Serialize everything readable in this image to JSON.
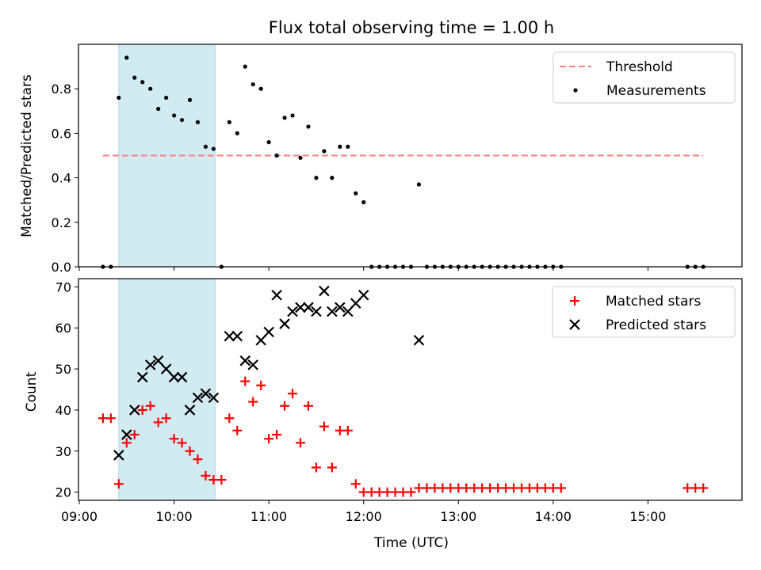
{
  "chart_data": [
    {
      "type": "scatter",
      "title": "Flux total observing time = 1.00 h",
      "xlabel": "",
      "ylabel": "Matched/Predicted stars",
      "xlim": [
        "09:00",
        "16:00"
      ],
      "ylim": [
        0,
        1.0
      ],
      "yticks": [
        0.0,
        0.2,
        0.4,
        0.6,
        0.8
      ],
      "xticks": [
        "09:00",
        "10:00",
        "11:00",
        "12:00",
        "13:00",
        "14:00",
        "15:00"
      ],
      "highlight_span": [
        "09:25",
        "10:26"
      ],
      "highlight_color": "#add8e6",
      "threshold": {
        "name": "Threshold",
        "y": 0.5,
        "x_range": [
          "09:15",
          "15:35"
        ],
        "color": "#ff7f7f"
      },
      "series": [
        {
          "name": "Measurements",
          "color": "#000000",
          "points": [
            [
              "09:15",
              0.0
            ],
            [
              "09:20",
              0.0
            ],
            [
              "09:25",
              0.76
            ],
            [
              "09:30",
              0.94
            ],
            [
              "09:35",
              0.85
            ],
            [
              "09:40",
              0.83
            ],
            [
              "09:45",
              0.8
            ],
            [
              "09:50",
              0.71
            ],
            [
              "09:55",
              0.76
            ],
            [
              "10:00",
              0.68
            ],
            [
              "10:05",
              0.66
            ],
            [
              "10:10",
              0.75
            ],
            [
              "10:15",
              0.65
            ],
            [
              "10:20",
              0.54
            ],
            [
              "10:25",
              0.53
            ],
            [
              "10:30",
              0.0
            ],
            [
              "10:35",
              0.65
            ],
            [
              "10:40",
              0.6
            ],
            [
              "10:45",
              0.9
            ],
            [
              "10:50",
              0.82
            ],
            [
              "10:55",
              0.8
            ],
            [
              "11:00",
              0.56
            ],
            [
              "11:05",
              0.5
            ],
            [
              "11:10",
              0.67
            ],
            [
              "11:15",
              0.68
            ],
            [
              "11:20",
              0.49
            ],
            [
              "11:25",
              0.63
            ],
            [
              "11:30",
              0.4
            ],
            [
              "11:35",
              0.52
            ],
            [
              "11:40",
              0.4
            ],
            [
              "11:45",
              0.54
            ],
            [
              "11:50",
              0.54
            ],
            [
              "11:55",
              0.33
            ],
            [
              "12:00",
              0.29
            ],
            [
              "12:05",
              0.0
            ],
            [
              "12:10",
              0.0
            ],
            [
              "12:15",
              0.0
            ],
            [
              "12:20",
              0.0
            ],
            [
              "12:25",
              0.0
            ],
            [
              "12:30",
              0.0
            ],
            [
              "12:35",
              0.37
            ],
            [
              "12:40",
              0.0
            ],
            [
              "12:45",
              0.0
            ],
            [
              "12:50",
              0.0
            ],
            [
              "12:55",
              0.0
            ],
            [
              "13:00",
              0.0
            ],
            [
              "13:05",
              0.0
            ],
            [
              "13:10",
              0.0
            ],
            [
              "13:15",
              0.0
            ],
            [
              "13:20",
              0.0
            ],
            [
              "13:25",
              0.0
            ],
            [
              "13:30",
              0.0
            ],
            [
              "13:35",
              0.0
            ],
            [
              "13:40",
              0.0
            ],
            [
              "13:45",
              0.0
            ],
            [
              "13:50",
              0.0
            ],
            [
              "13:55",
              0.0
            ],
            [
              "14:00",
              0.0
            ],
            [
              "14:05",
              0.0
            ],
            [
              "15:25",
              0.0
            ],
            [
              "15:30",
              0.0
            ],
            [
              "15:35",
              0.0
            ]
          ]
        }
      ],
      "legend": {
        "position": "top-right",
        "entries": [
          "Threshold",
          "Measurements"
        ]
      }
    },
    {
      "type": "scatter",
      "title": "",
      "xlabel": "Time (UTC)",
      "ylabel": "Count",
      "xlim": [
        "09:00",
        "16:00"
      ],
      "ylim": [
        18,
        72
      ],
      "yticks": [
        20,
        30,
        40,
        50,
        60,
        70
      ],
      "xticks": [
        "09:00",
        "10:00",
        "11:00",
        "12:00",
        "13:00",
        "14:00",
        "15:00"
      ],
      "highlight_span": [
        "09:25",
        "10:26"
      ],
      "highlight_color": "#add8e6",
      "series": [
        {
          "name": "Matched stars",
          "marker": "plus",
          "color": "#ff0000",
          "points": [
            [
              "09:15",
              38
            ],
            [
              "09:20",
              38
            ],
            [
              "09:25",
              22
            ],
            [
              "09:30",
              32
            ],
            [
              "09:35",
              34
            ],
            [
              "09:40",
              40
            ],
            [
              "09:45",
              41
            ],
            [
              "09:50",
              37
            ],
            [
              "09:55",
              38
            ],
            [
              "10:00",
              33
            ],
            [
              "10:05",
              32
            ],
            [
              "10:10",
              30
            ],
            [
              "10:15",
              28
            ],
            [
              "10:20",
              24
            ],
            [
              "10:25",
              23
            ],
            [
              "10:30",
              23
            ],
            [
              "10:35",
              38
            ],
            [
              "10:40",
              35
            ],
            [
              "10:45",
              47
            ],
            [
              "10:50",
              42
            ],
            [
              "10:55",
              46
            ],
            [
              "11:00",
              33
            ],
            [
              "11:05",
              34
            ],
            [
              "11:10",
              41
            ],
            [
              "11:15",
              44
            ],
            [
              "11:20",
              32
            ],
            [
              "11:25",
              41
            ],
            [
              "11:30",
              26
            ],
            [
              "11:35",
              36
            ],
            [
              "11:40",
              26
            ],
            [
              "11:45",
              35
            ],
            [
              "11:50",
              35
            ],
            [
              "11:55",
              22
            ],
            [
              "12:00",
              20
            ],
            [
              "12:05",
              20
            ],
            [
              "12:10",
              20
            ],
            [
              "12:15",
              20
            ],
            [
              "12:20",
              20
            ],
            [
              "12:25",
              20
            ],
            [
              "12:30",
              20
            ],
            [
              "12:35",
              21
            ],
            [
              "12:40",
              21
            ],
            [
              "12:45",
              21
            ],
            [
              "12:50",
              21
            ],
            [
              "12:55",
              21
            ],
            [
              "13:00",
              21
            ],
            [
              "13:05",
              21
            ],
            [
              "13:10",
              21
            ],
            [
              "13:15",
              21
            ],
            [
              "13:20",
              21
            ],
            [
              "13:25",
              21
            ],
            [
              "13:30",
              21
            ],
            [
              "13:35",
              21
            ],
            [
              "13:40",
              21
            ],
            [
              "13:45",
              21
            ],
            [
              "13:50",
              21
            ],
            [
              "13:55",
              21
            ],
            [
              "14:00",
              21
            ],
            [
              "14:05",
              21
            ],
            [
              "15:25",
              21
            ],
            [
              "15:30",
              21
            ],
            [
              "15:35",
              21
            ]
          ]
        },
        {
          "name": "Predicted stars",
          "marker": "x",
          "color": "#000000",
          "points": [
            [
              "09:25",
              29
            ],
            [
              "09:30",
              34
            ],
            [
              "09:35",
              40
            ],
            [
              "09:40",
              48
            ],
            [
              "09:45",
              51
            ],
            [
              "09:50",
              52
            ],
            [
              "09:55",
              50
            ],
            [
              "10:00",
              48
            ],
            [
              "10:05",
              48
            ],
            [
              "10:10",
              40
            ],
            [
              "10:15",
              43
            ],
            [
              "10:20",
              44
            ],
            [
              "10:25",
              43
            ],
            [
              "10:35",
              58
            ],
            [
              "10:40",
              58
            ],
            [
              "10:45",
              52
            ],
            [
              "10:50",
              51
            ],
            [
              "10:55",
              57
            ],
            [
              "11:00",
              59
            ],
            [
              "11:05",
              68
            ],
            [
              "11:10",
              61
            ],
            [
              "11:15",
              64
            ],
            [
              "11:20",
              65
            ],
            [
              "11:25",
              65
            ],
            [
              "11:30",
              64
            ],
            [
              "11:35",
              69
            ],
            [
              "11:40",
              64
            ],
            [
              "11:45",
              65
            ],
            [
              "11:50",
              64
            ],
            [
              "11:55",
              66
            ],
            [
              "12:00",
              68
            ],
            [
              "12:35",
              57
            ]
          ]
        }
      ],
      "legend": {
        "position": "top-right",
        "entries": [
          "Matched stars",
          "Predicted stars"
        ]
      }
    }
  ]
}
